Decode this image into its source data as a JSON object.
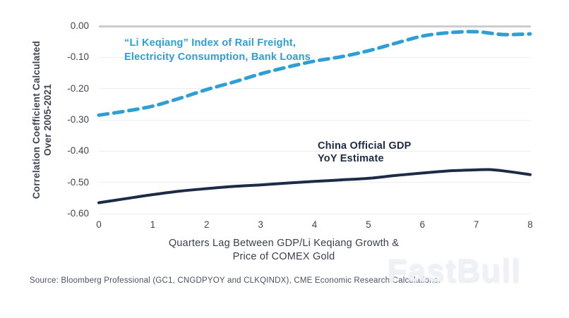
{
  "source_note": "Source: Bloomberg Professional (GC1, CNGDPYOY and CLKQINDX), CME Economic Research Calculations.",
  "watermark": {
    "text": "FastBull"
  },
  "colors": {
    "li_keqiang_blue": "#2E9FD5",
    "gdp_navy": "#1C2B46",
    "zero_line_gray": "#C9CCD1",
    "gridline_gray": "#ECEDEF",
    "axis_text": "#3F4654"
  },
  "chart_data": {
    "type": "line",
    "title": "",
    "y_axis_title_lines": [
      "Correlation Coefficient Calculated",
      "Over 2005-2021"
    ],
    "x_axis_title_lines": [
      "Quarters Lag Between GDP/Li Keqiang Growth &",
      "Price of COMEX Gold"
    ],
    "ylim": [
      -0.6,
      0.0
    ],
    "xlim": [
      0,
      8
    ],
    "grid": "horizontal",
    "legend_position": "on-chart text annotations",
    "yticks": [
      {
        "value": 0.0,
        "label": "0.00"
      },
      {
        "value": -0.1,
        "label": "-0.10"
      },
      {
        "value": -0.2,
        "label": "-0.20"
      },
      {
        "value": -0.3,
        "label": "-0.30"
      },
      {
        "value": -0.4,
        "label": "-0.40"
      },
      {
        "value": -0.5,
        "label": "-0.50"
      },
      {
        "value": -0.6,
        "label": "-0.60"
      }
    ],
    "xticks": [
      {
        "value": 0,
        "label": "0"
      },
      {
        "value": 1,
        "label": "1"
      },
      {
        "value": 2,
        "label": "2"
      },
      {
        "value": 3,
        "label": "3"
      },
      {
        "value": 4,
        "label": "4"
      },
      {
        "value": 5,
        "label": "5"
      },
      {
        "value": 6,
        "label": "6"
      },
      {
        "value": 7,
        "label": "7"
      },
      {
        "value": 8,
        "label": "8"
      }
    ],
    "series": [
      {
        "name": "“Li Keqiang” Index of Rail Freight, Electricity Consumption, Bank Loans",
        "label_lines": [
          "“Li Keqiang” Index of Rail Freight,",
          "Electricity Consumption, Bank Loans"
        ],
        "color": "#2E9FD5",
        "line_style": "dashed",
        "line_width": 5,
        "x": [
          0,
          0.5,
          1,
          1.5,
          2,
          2.5,
          3,
          3.5,
          4,
          4.5,
          5,
          5.5,
          6,
          6.5,
          7,
          7.5,
          8
        ],
        "y": [
          -0.285,
          -0.272,
          -0.256,
          -0.231,
          -0.203,
          -0.179,
          -0.153,
          -0.131,
          -0.112,
          -0.098,
          -0.079,
          -0.055,
          -0.032,
          -0.021,
          -0.018,
          -0.027,
          -0.025
        ]
      },
      {
        "name": "China Official GDP YoY Estimate",
        "label_lines": [
          "China Official GDP",
          "YoY Estimate"
        ],
        "color": "#1C2B46",
        "line_style": "solid",
        "line_width": 4,
        "x": [
          0,
          0.5,
          1,
          1.5,
          2,
          2.5,
          3,
          3.5,
          4,
          4.5,
          5,
          5.5,
          6,
          6.5,
          7,
          7.25,
          7.5,
          8
        ],
        "y": [
          -0.565,
          -0.552,
          -0.539,
          -0.528,
          -0.52,
          -0.513,
          -0.508,
          -0.502,
          -0.497,
          -0.492,
          -0.487,
          -0.478,
          -0.47,
          -0.463,
          -0.46,
          -0.459,
          -0.463,
          -0.475
        ]
      }
    ]
  }
}
